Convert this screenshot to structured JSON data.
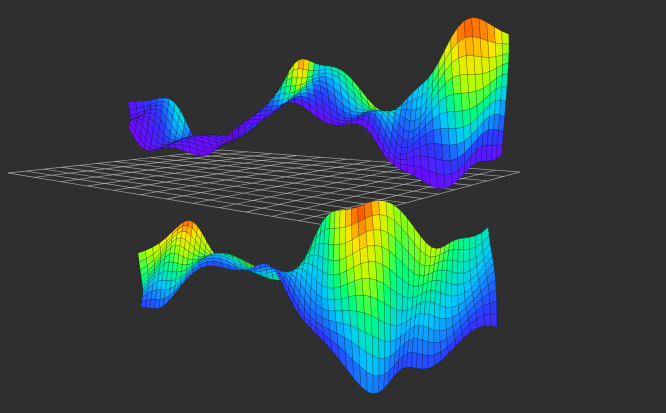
{
  "scene": {
    "background": "#2f2f2f",
    "grid_color": "#c9c9c9",
    "wire_color": "#000000",
    "colormap": [
      "#7a00ff",
      "#2a3cff",
      "#00c8ff",
      "#00ff7a",
      "#a8ff00",
      "#ffe600",
      "#ff6a00",
      "#e01010"
    ],
    "grid": {
      "visible": true,
      "divisions": 12
    },
    "surfaces": [
      {
        "name": "upper-surface",
        "position": "above-grid",
        "colormap": "rainbow",
        "wireframe": true
      },
      {
        "name": "lower-surface",
        "position": "below-grid",
        "colormap": "rainbow",
        "wireframe": true
      }
    ]
  }
}
